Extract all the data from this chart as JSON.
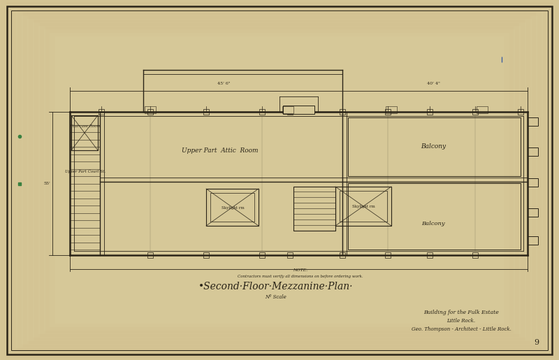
{
  "bg_color": "#c8b882",
  "paper_color": "#d6c898",
  "line_color": "#2a2418",
  "thin_line": 0.6,
  "med_line": 1.0,
  "thick_line": 1.8,
  "title_text": "•Second·Floor·Mezzanine·Plan·",
  "scale_text": "Nº Scale",
  "note_line1": "NOTE:",
  "note_line2": "Contractors must verify all dimensions on before ordering work.",
  "title_block_line1": "Building for the Fulk Estate",
  "title_block_line2": "Little Rock.",
  "title_block_line3": "Geo. Thompson - Architect - Little Rock.",
  "page_num": "9"
}
